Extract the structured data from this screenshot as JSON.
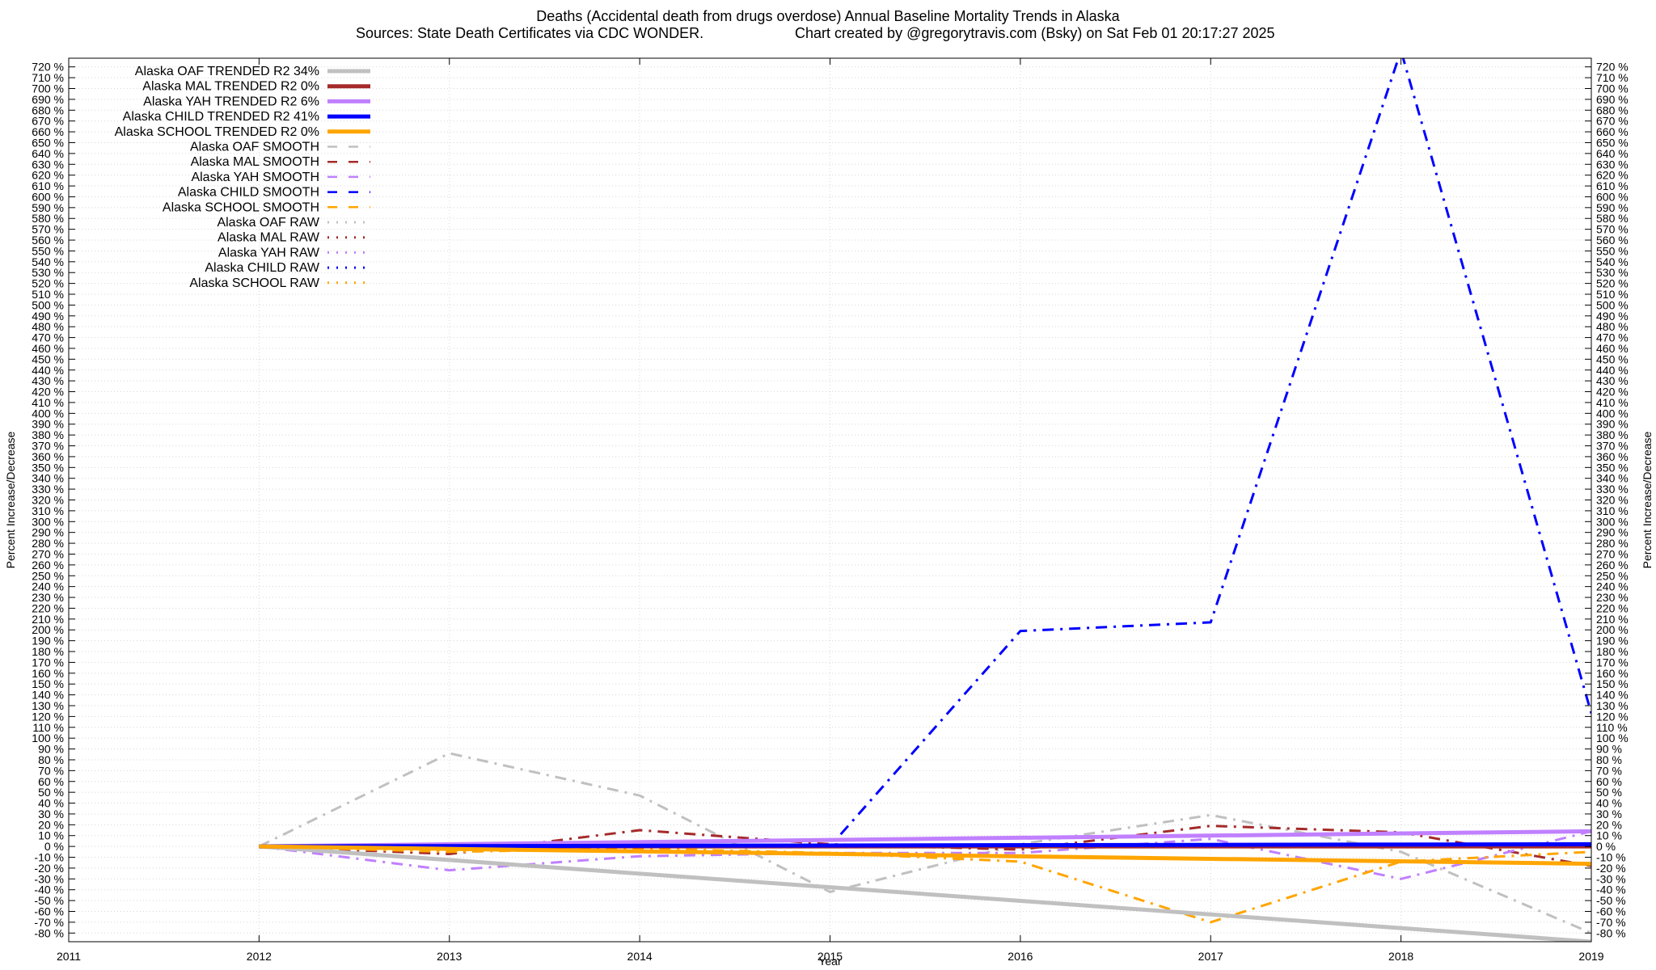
{
  "title_line1": "Deaths (Accidental death from drugs overdose)  Annual Baseline Mortality Trends in Alaska",
  "title_line2_left": "Sources: State Death Certificates via CDC WONDER.",
  "title_line2_right": "Chart created by @gregorytravis.com (Bsky) on Sat Feb 01 20:17:27 2025",
  "chart_data": {
    "type": "line",
    "xlabel": "Year",
    "ylabel": "Percent Increase/Decrease",
    "y2label": "Percent Increase/Decrease",
    "xlim": [
      2011,
      2019
    ],
    "ylim": [
      -88,
      728
    ],
    "x_ticks": [
      2011,
      2012,
      2013,
      2014,
      2015,
      2016,
      2017,
      2018,
      2019
    ],
    "y_ticks_from": -80,
    "y_ticks_to": 720,
    "y_tick_step": 10,
    "y_tick_suffix": " %",
    "grid": true,
    "legend_position": "top-left",
    "series": [
      {
        "name": "Alaska OAF TRENDED R2  34%",
        "style": "trended",
        "color": "#c0c0c0",
        "x": [
          2012,
          2019
        ],
        "y": [
          0,
          -88
        ]
      },
      {
        "name": "Alaska MAL TRENDED R2   0%",
        "style": "trended",
        "color": "#a52a2a",
        "x": [
          2012,
          2019
        ],
        "y": [
          0,
          0
        ]
      },
      {
        "name": "Alaska YAH TRENDED R2   6%",
        "style": "trended",
        "color": "#c080ff",
        "x": [
          2012,
          2019
        ],
        "y": [
          0,
          14
        ]
      },
      {
        "name": "Alaska CHILD TRENDED R2  41%",
        "style": "trended",
        "color": "#0000ff",
        "x": [
          2012,
          2019
        ],
        "y": [
          0,
          2
        ]
      },
      {
        "name": "Alaska SCHOOL TRENDED R2   0%",
        "style": "trended",
        "color": "#ffa500",
        "x": [
          2012,
          2019
        ],
        "y": [
          0,
          -16
        ]
      },
      {
        "name": "Alaska OAF SMOOTH",
        "style": "smooth",
        "color": "#c0c0c0",
        "x": [],
        "y": []
      },
      {
        "name": "Alaska MAL SMOOTH",
        "style": "smooth",
        "color": "#a52a2a",
        "x": [],
        "y": []
      },
      {
        "name": "Alaska YAH SMOOTH",
        "style": "smooth",
        "color": "#c080ff",
        "x": [],
        "y": []
      },
      {
        "name": "Alaska CHILD SMOOTH",
        "style": "smooth",
        "color": "#0000ff",
        "x": [],
        "y": []
      },
      {
        "name": "Alaska SCHOOL SMOOTH",
        "style": "smooth",
        "color": "#ffa500",
        "x": [],
        "y": []
      },
      {
        "name": "Alaska OAF RAW",
        "style": "raw",
        "color": "#c0c0c0",
        "x": [
          2012,
          2013,
          2014,
          2015,
          2016,
          2017,
          2018,
          2019
        ],
        "y": [
          0,
          86,
          47,
          -42,
          2,
          29,
          -5,
          -80
        ]
      },
      {
        "name": "Alaska MAL RAW",
        "style": "raw",
        "color": "#a52a2a",
        "x": [
          2012,
          2013,
          2014,
          2015,
          2016,
          2017,
          2018,
          2019
        ],
        "y": [
          0,
          -7,
          15,
          2,
          -3,
          19,
          13,
          -18
        ]
      },
      {
        "name": "Alaska YAH RAW",
        "style": "raw",
        "color": "#c080ff",
        "x": [
          2012,
          2013,
          2014,
          2015,
          2016,
          2017,
          2018,
          2019
        ],
        "y": [
          0,
          -22,
          -9,
          -6,
          -6,
          7,
          -30,
          14
        ]
      },
      {
        "name": "Alaska CHILD RAW",
        "style": "raw",
        "color": "#0000ff",
        "x": [
          2012,
          2013,
          2014,
          2015,
          2016,
          2017,
          2018,
          2019
        ],
        "y": [
          0,
          0,
          0,
          0,
          199,
          207,
          735,
          123
        ]
      },
      {
        "name": "Alaska SCHOOL RAW",
        "style": "raw",
        "color": "#ffa500",
        "x": [
          2012,
          2013,
          2014,
          2015,
          2016,
          2017,
          2018,
          2019
        ],
        "y": [
          0,
          -5,
          -2,
          -6,
          -14,
          -70,
          -14,
          -5
        ]
      }
    ]
  }
}
